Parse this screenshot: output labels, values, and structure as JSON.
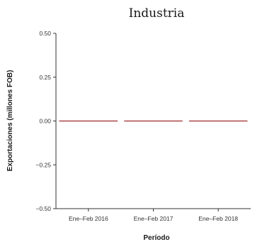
{
  "chart_data": {
    "type": "bar",
    "title": "Industria",
    "xlabel": "Período",
    "ylabel": "Exportaciones (millones FOB)",
    "categories": [
      "Ene–Feb 2016",
      "Ene–Feb 2017",
      "Ene–Feb 2018"
    ],
    "values": [
      0,
      0,
      0
    ],
    "ylim": [
      -0.5,
      0.5
    ],
    "yticks": [
      0.5,
      0.25,
      0.0,
      -0.25,
      -0.5
    ],
    "ytick_labels": [
      "0.50",
      "0.25",
      "0.00",
      "−0.25",
      "−0.50"
    ],
    "grid": false,
    "legend": "none",
    "bar_color": "#8b0000"
  }
}
